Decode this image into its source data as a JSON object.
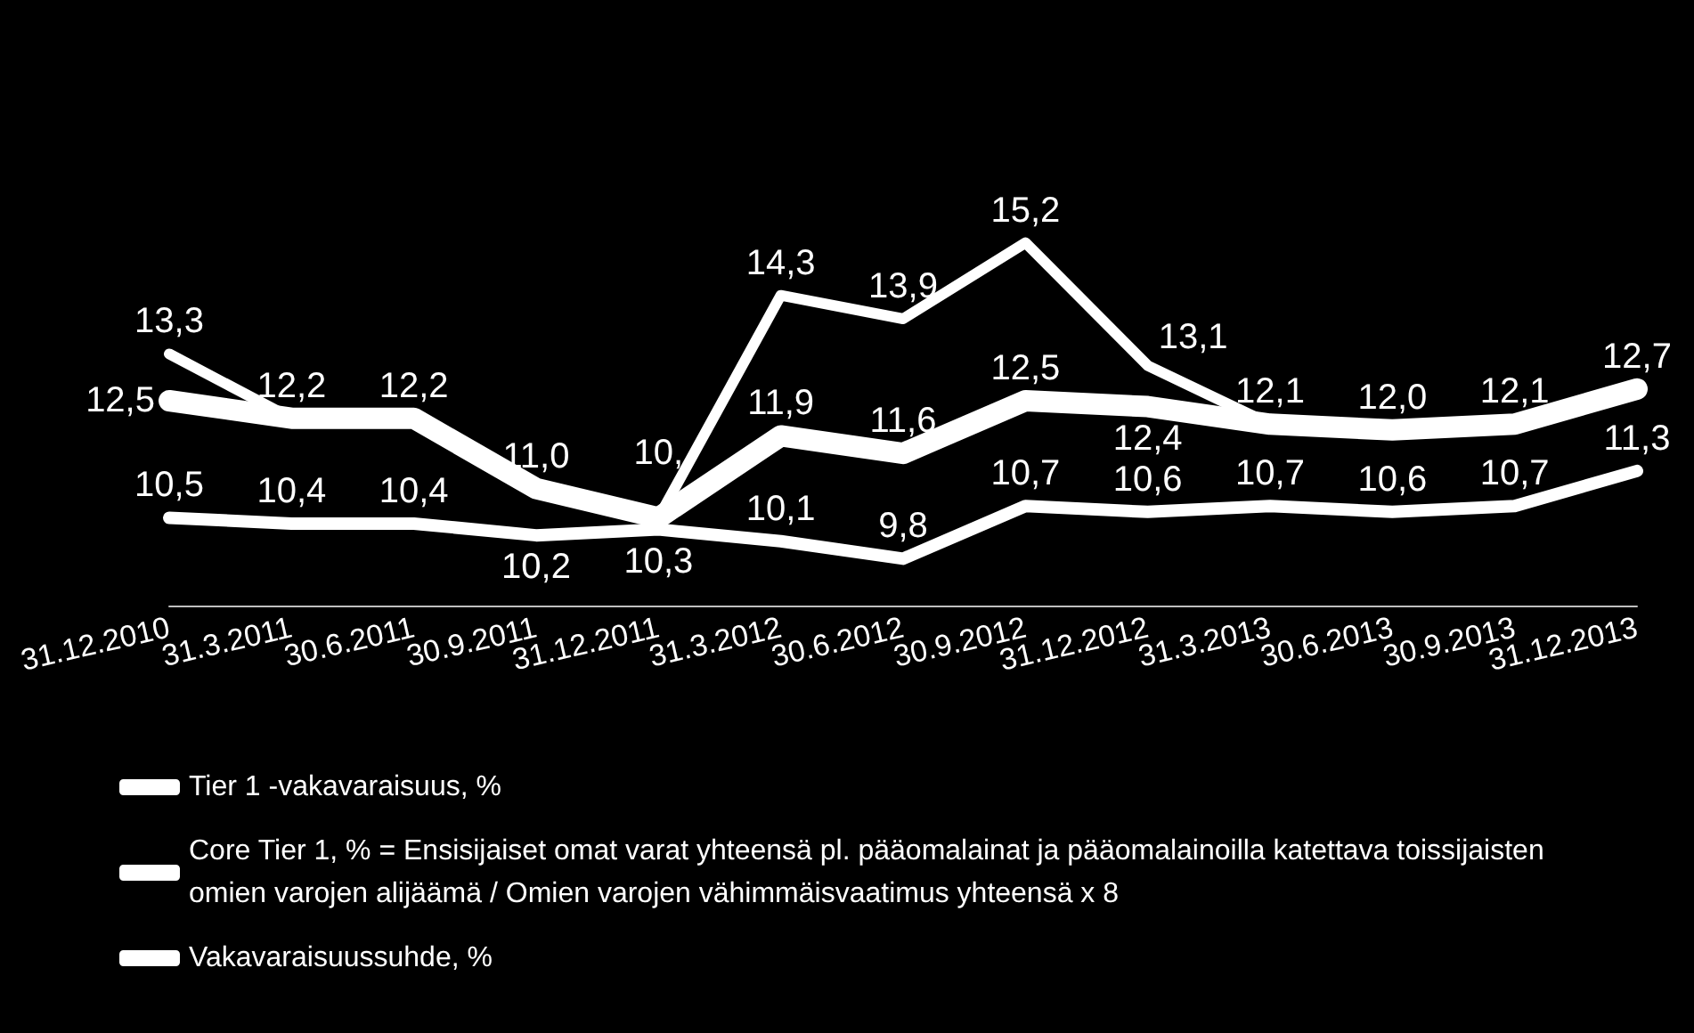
{
  "chart_data": {
    "type": "line",
    "categories": [
      "31.12.2010",
      "31.3.2011",
      "30.6.2011",
      "30.9.2011",
      "31.12.2011",
      "31.3.2012",
      "30.6.2012",
      "30.9.2012",
      "31.12.2012",
      "31.3.2013",
      "30.6.2013",
      "30.9.2013",
      "31.12.2013"
    ],
    "series": [
      {
        "name": "Tier 1 -vakavaraisuus, %",
        "color": "#ffffff",
        "values": [
          12.5,
          12.2,
          12.2,
          11.0,
          10.5,
          11.9,
          11.6,
          12.5,
          12.4,
          12.1,
          12.0,
          12.1,
          12.7
        ],
        "value_labels": [
          "12,5",
          null,
          null,
          null,
          null,
          "11,9",
          "11,6",
          "12,5",
          "12,4",
          null,
          null,
          null,
          null
        ]
      },
      {
        "name": "Core Tier 1, % = Ensisijaiset omat varat yhteensä pl. pääomalainat ja pääomalainoilla katettava toissijaisten omien varojen alijäämä / Omien varojen vähimmäisvaatimus yhteensä x 8",
        "color": "#ffffff",
        "values": [
          10.5,
          10.4,
          10.4,
          10.2,
          10.3,
          10.1,
          9.8,
          10.7,
          10.6,
          10.7,
          10.6,
          10.7,
          11.3
        ],
        "value_labels": [
          "10,5",
          "10,4",
          "10,4",
          "10,2",
          "10,3",
          "10,1",
          "9,8",
          "10,7",
          "10,6",
          "10,7",
          "10,6",
          "10,7",
          "11,3"
        ]
      },
      {
        "name": "Vakavaraisuussuhde, %",
        "color": "#ffffff",
        "values": [
          13.3,
          12.2,
          12.2,
          11.0,
          10.5,
          14.3,
          13.9,
          15.2,
          13.1,
          12.1,
          12.0,
          12.1,
          12.7
        ],
        "value_labels": [
          "13,3",
          "12,2",
          "12,2",
          "11,0",
          "10,",
          "14,3",
          "13,9",
          "15,2",
          "13,1",
          "12,1",
          "12,0",
          "12,1",
          "12,7"
        ]
      }
    ],
    "legend": "bottom",
    "grid": false,
    "marker": "none",
    "line_style": "solid"
  }
}
